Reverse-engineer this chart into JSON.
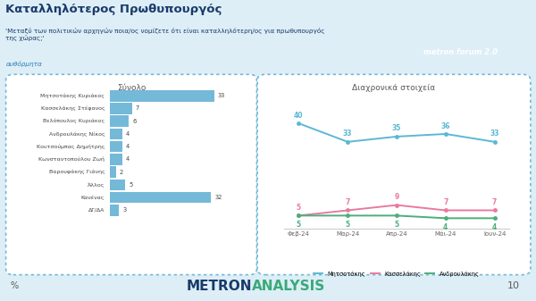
{
  "title": "Καταλληλότερος Πρωθυπουργός",
  "subtitle": "'Μεταξύ των πολιτικών αρχηγών ποια/ος νομίζετε ότι είναι καταλληλότερη/ος για πρωθυπουργός\nτης χώρας;'",
  "subtitle_link": "αυθόρμητα",
  "bg_color": "#ddeef6",
  "header_bg": "#c5dce8",
  "bar_panel_title": "Σύνολο",
  "bar_labels": [
    "Μητσοτάκης Κυριάκος",
    "Κασσελάκης Στέφανος",
    "Βελόπουλος Κυριάκος",
    "Ανδρουλάκης Νίκος",
    "Κουτσούμπας Δημήτρης",
    "Κωνσταντοπούλου Ζωή",
    "Βαρουφάκης Γιάνης",
    "Άλλος",
    "Κανένας",
    "ΔΓ/ΔΑ"
  ],
  "bar_values": [
    33,
    7,
    6,
    4,
    4,
    4,
    2,
    5,
    32,
    3
  ],
  "bar_color": "#74b9d8",
  "line_panel_title": "Διαχρονικά στοιχεία",
  "x_labels": [
    "Φεβ-24",
    "Μαρ-24",
    "Απρ-24",
    "Μάι-24",
    "Ιουν-24"
  ],
  "mitsotakis": [
    40,
    33,
    35,
    36,
    33
  ],
  "kasselakis": [
    5,
    7,
    9,
    7,
    7
  ],
  "androulakis": [
    5,
    5,
    5,
    4,
    4
  ],
  "mitsotakis_color": "#5bb8d4",
  "kasselakis_color": "#e87aa0",
  "androulakis_color": "#4caf7a",
  "legend_labels": [
    "Μητσοτάκης",
    "Κασσελάκης",
    "Ανδρουλάκης"
  ],
  "page_number": "10",
  "percent_label": "%",
  "footer_left": "METRON",
  "footer_right": "ANALYSIS",
  "footer_left_color": "#1a3a6b",
  "footer_right_color": "#3aaa7a"
}
